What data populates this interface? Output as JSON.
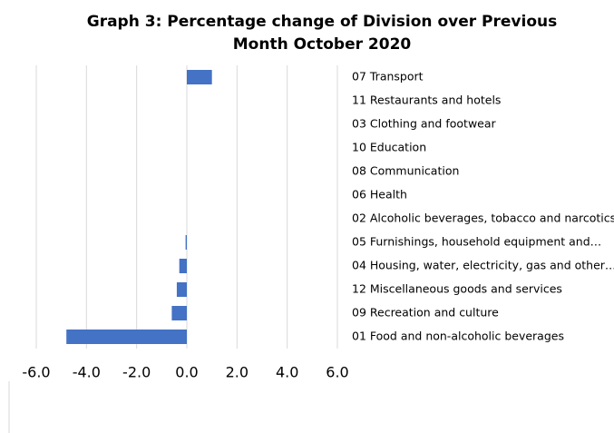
{
  "chart_data": {
    "type": "barh",
    "title": "Graph 3: Percentage change of Division over Previous Month October 2020",
    "categories": [
      "07 Transport",
      "11 Restaurants and hotels",
      "03 Clothing and footwear",
      "10 Education",
      "08 Communication",
      "06 Health",
      "02 Alcoholic beverages, tobacco and narcotics",
      "05 Furnishings, household equipment and…",
      "04 Housing, water, electricity, gas and other…",
      "12 Miscellaneous goods and services",
      "09 Recreation and culture",
      "01 Food and non-alcoholic beverages"
    ],
    "values": [
      1.0,
      0,
      0,
      0,
      0,
      0,
      0,
      -0.05,
      -0.3,
      -0.4,
      -0.6,
      -4.8
    ],
    "color": "#4472c4",
    "xlim": [
      -6,
      6
    ],
    "xticks": [
      {
        "value": -6,
        "label": "-6.0"
      },
      {
        "value": -4,
        "label": "-4.0"
      },
      {
        "value": -2,
        "label": "-2.0"
      },
      {
        "value": 0,
        "label": "0.0"
      },
      {
        "value": 2,
        "label": "2.0"
      },
      {
        "value": 4,
        "label": "4.0"
      },
      {
        "value": 6,
        "label": "6.0"
      }
    ],
    "grid": true
  }
}
